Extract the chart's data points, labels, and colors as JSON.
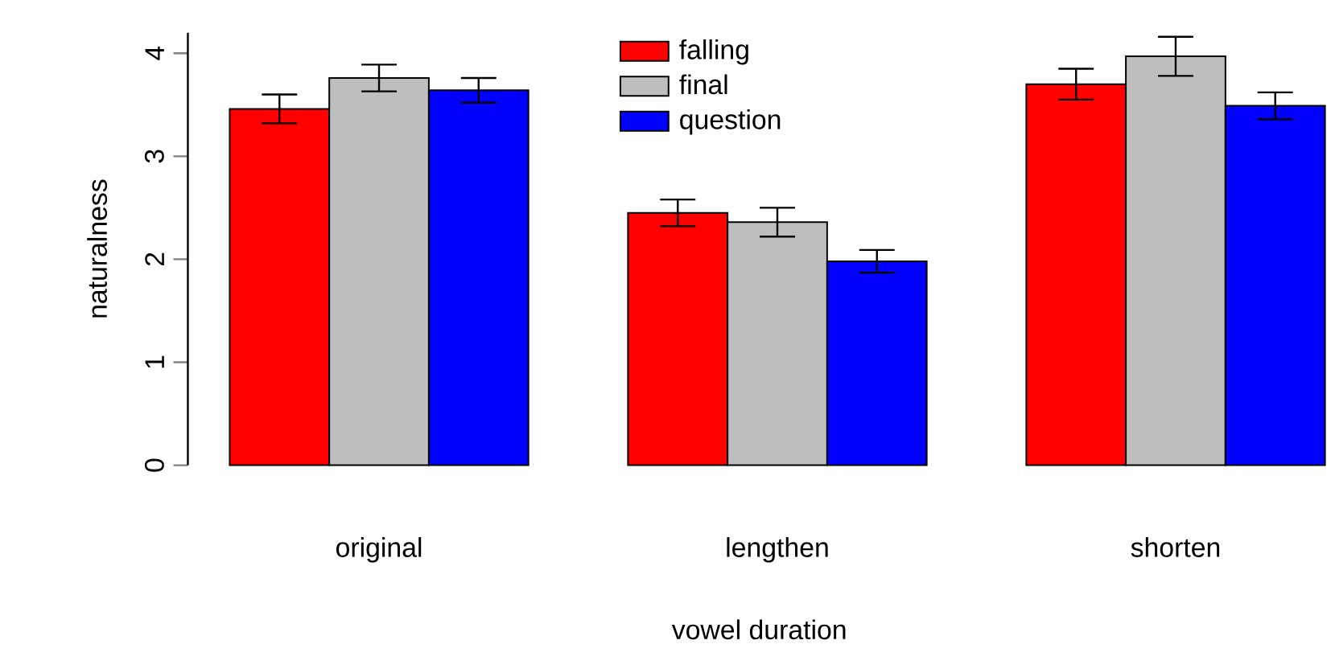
{
  "chart_data": {
    "type": "bar",
    "xlabel": "vowel duration",
    "ylabel": "naturalness",
    "categories": [
      "original",
      "lengthen",
      "shorten"
    ],
    "series": [
      {
        "name": "falling",
        "color": "#ff0000",
        "values": [
          3.46,
          2.45,
          3.7
        ],
        "errors": [
          0.14,
          0.13,
          0.15
        ]
      },
      {
        "name": "final",
        "color": "#bebebe",
        "values": [
          3.76,
          2.36,
          3.97
        ],
        "errors": [
          0.13,
          0.14,
          0.19
        ]
      },
      {
        "name": "question",
        "color": "#0000ff",
        "values": [
          3.64,
          1.98,
          3.49
        ],
        "errors": [
          0.12,
          0.11,
          0.13
        ]
      }
    ],
    "ylim": [
      0,
      4.2
    ],
    "yticks": [
      0,
      1,
      2,
      3,
      4
    ],
    "legend": "top"
  }
}
